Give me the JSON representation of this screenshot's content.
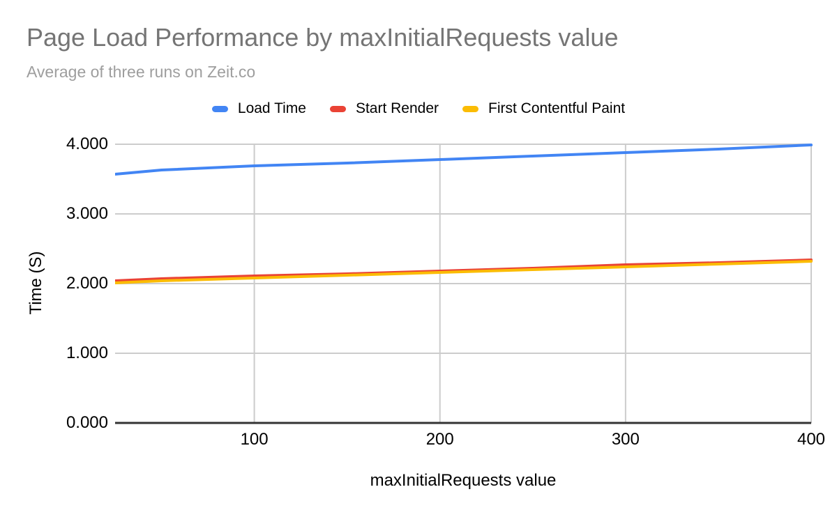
{
  "header": {
    "title": "Page Load Performance by maxInitialRequests value",
    "subtitle": "Average of three runs on Zeit.co"
  },
  "legend": [
    {
      "label": "Load Time",
      "color": "#4285F4"
    },
    {
      "label": "Start Render",
      "color": "#EA4335"
    },
    {
      "label": "First Contentful Paint",
      "color": "#FBBC04"
    }
  ],
  "chart_data": {
    "type": "line",
    "title": "Page Load Performance by maxInitialRequests value",
    "subtitle": "Average of three runs on Zeit.co",
    "xlabel": "maxInitialRequests value",
    "ylabel": "Time (S)",
    "xlim": [
      25,
      400
    ],
    "ylim": [
      0,
      4
    ],
    "xticks": [
      100,
      200,
      300,
      400
    ],
    "xtick_labels": [
      "100",
      "200",
      "300",
      "400"
    ],
    "yticks": [
      0,
      1,
      2,
      3,
      4
    ],
    "ytick_labels": [
      "0.000",
      "1.000",
      "2.000",
      "3.000",
      "4.000"
    ],
    "grid": true,
    "legend_position": "top",
    "x": [
      25,
      50,
      100,
      150,
      200,
      250,
      300,
      350,
      400
    ],
    "series": [
      {
        "name": "Load Time",
        "color": "#4285F4",
        "values": [
          3.57,
          3.63,
          3.69,
          3.73,
          3.78,
          3.83,
          3.88,
          3.93,
          3.99
        ]
      },
      {
        "name": "Start Render",
        "color": "#EA4335",
        "values": [
          2.04,
          2.07,
          2.11,
          2.14,
          2.18,
          2.22,
          2.27,
          2.3,
          2.34
        ]
      },
      {
        "name": "First Contentful Paint",
        "color": "#FBBC04",
        "values": [
          2.01,
          2.04,
          2.08,
          2.12,
          2.16,
          2.2,
          2.24,
          2.28,
          2.32
        ]
      }
    ],
    "colors": {
      "grid": "#cccccc",
      "axis": "#333333",
      "title": "#757575",
      "subtitle": "#9e9e9e",
      "tick": "#000000"
    }
  }
}
